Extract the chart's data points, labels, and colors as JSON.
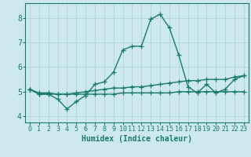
{
  "xlabel": "Humidex (Indice chaleur)",
  "xlim": [
    -0.5,
    23.5
  ],
  "ylim": [
    3.75,
    8.6
  ],
  "yticks": [
    4,
    5,
    6,
    7,
    8
  ],
  "xticks": [
    0,
    1,
    2,
    3,
    4,
    5,
    6,
    7,
    8,
    9,
    10,
    11,
    12,
    13,
    14,
    15,
    16,
    17,
    18,
    19,
    20,
    21,
    22,
    23
  ],
  "bg_color": "#cde9ed",
  "line_color": "#1a7a6e",
  "grid_color": "#b0d4d8",
  "lines": [
    [
      5.1,
      4.9,
      4.9,
      4.7,
      4.3,
      4.6,
      4.85,
      5.3,
      5.4,
      5.8,
      6.7,
      6.85,
      6.85,
      7.95,
      8.15,
      7.6,
      6.5,
      5.2,
      4.95,
      5.3,
      4.95,
      5.1,
      5.5,
      5.65
    ],
    [
      5.1,
      4.9,
      4.9,
      4.9,
      4.9,
      4.95,
      5.0,
      5.05,
      5.1,
      5.15,
      5.15,
      5.2,
      5.2,
      5.25,
      5.3,
      5.35,
      5.4,
      5.45,
      5.45,
      5.5,
      5.5,
      5.5,
      5.6,
      5.65
    ],
    [
      5.1,
      4.95,
      4.95,
      4.9,
      4.9,
      4.9,
      4.9,
      4.9,
      4.9,
      4.9,
      4.95,
      4.95,
      4.95,
      4.95,
      4.95,
      4.95,
      5.0,
      5.0,
      5.0,
      5.0,
      5.0,
      5.0,
      5.0,
      5.0
    ]
  ],
  "marker": "+",
  "markersize": 4,
  "linewidth": 1.0,
  "tick_fontsize": 6,
  "label_fontsize": 7,
  "spine_color": "#1a7a6e"
}
